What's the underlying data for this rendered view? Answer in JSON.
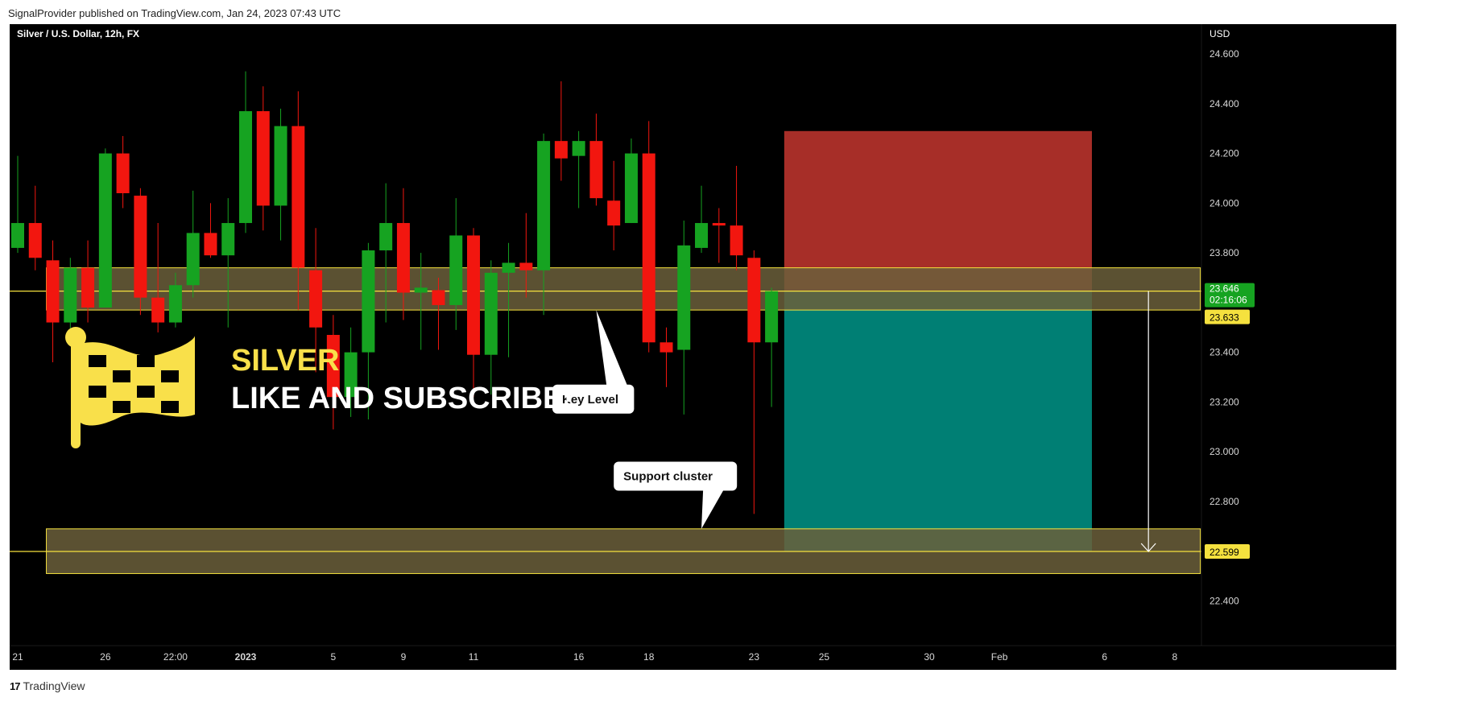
{
  "header": {
    "published_text": "SignalProvider published on TradingView.com, Jan 24, 2023 07:43 UTC"
  },
  "footer": {
    "brand_icon": "tradingview-logo-icon",
    "brand_label": "TradingView"
  },
  "promo": {
    "flag_icon": "checkered-flag-icon",
    "title": "SILVER",
    "subtitle": "LIKE AND SUBSCRIBE!",
    "title_color": "#f9e04a",
    "subtitle_color": "#ffffff"
  },
  "colors": {
    "background": "#000000",
    "up": "#16a321",
    "down": "#f2160f",
    "zone_fill": "#6b5f3b",
    "zone_stroke": "#f5e13e",
    "stop_box": "#b0302a",
    "target_box": "#00867a",
    "level_line": "#f5e13e",
    "current_price_badge": "#16a321"
  },
  "chart_data": {
    "type": "candlestick",
    "title": "Silver / U.S. Dollar, 12h, FX",
    "currency_label": "USD",
    "y_ticks": [
      "24.600",
      "24.400",
      "24.200",
      "24.000",
      "23.800",
      "23.400",
      "23.200",
      "23.000",
      "22.800",
      "22.400"
    ],
    "y_tick_values": [
      24.6,
      24.4,
      24.2,
      24.0,
      23.8,
      23.4,
      23.2,
      23.0,
      22.8,
      22.4
    ],
    "ylim": [
      22.22,
      24.72
    ],
    "x_ticks": [
      {
        "label": "21",
        "index": 0,
        "bold": false
      },
      {
        "label": "26",
        "index": 5,
        "bold": false
      },
      {
        "label": "22:00",
        "index": 9,
        "bold": false
      },
      {
        "label": "2023",
        "index": 13,
        "bold": true
      },
      {
        "label": "5",
        "index": 18,
        "bold": false
      },
      {
        "label": "9",
        "index": 22,
        "bold": false
      },
      {
        "label": "11",
        "index": 26,
        "bold": false
      },
      {
        "label": "16",
        "index": 32,
        "bold": false
      },
      {
        "label": "18",
        "index": 36,
        "bold": false
      },
      {
        "label": "23",
        "index": 42,
        "bold": false
      },
      {
        "label": "25",
        "index": 46,
        "bold": false
      },
      {
        "label": "30",
        "index": 52,
        "bold": false
      },
      {
        "label": "Feb",
        "index": 56,
        "bold": false
      },
      {
        "label": "6",
        "index": 62,
        "bold": false
      },
      {
        "label": "8",
        "index": 66,
        "bold": false
      }
    ],
    "candles": [
      {
        "o": 23.82,
        "h": 24.19,
        "l": 23.8,
        "c": 23.92
      },
      {
        "o": 23.92,
        "h": 24.07,
        "l": 23.73,
        "c": 23.78
      },
      {
        "o": 23.77,
        "h": 23.85,
        "l": 23.36,
        "c": 23.52
      },
      {
        "o": 23.52,
        "h": 23.78,
        "l": 23.47,
        "c": 23.74
      },
      {
        "o": 23.74,
        "h": 23.85,
        "l": 23.52,
        "c": 23.58
      },
      {
        "o": 23.58,
        "h": 24.22,
        "l": 23.58,
        "c": 24.2
      },
      {
        "o": 24.2,
        "h": 24.27,
        "l": 23.98,
        "c": 24.04
      },
      {
        "o": 24.03,
        "h": 24.06,
        "l": 23.55,
        "c": 23.62
      },
      {
        "o": 23.62,
        "h": 23.92,
        "l": 23.48,
        "c": 23.52
      },
      {
        "o": 23.52,
        "h": 23.72,
        "l": 23.5,
        "c": 23.67
      },
      {
        "o": 23.67,
        "h": 24.05,
        "l": 23.62,
        "c": 23.88
      },
      {
        "o": 23.88,
        "h": 24.0,
        "l": 23.78,
        "c": 23.79
      },
      {
        "o": 23.79,
        "h": 24.02,
        "l": 23.5,
        "c": 23.92
      },
      {
        "o": 23.92,
        "h": 24.53,
        "l": 23.88,
        "c": 24.37
      },
      {
        "o": 24.37,
        "h": 24.47,
        "l": 23.89,
        "c": 23.99
      },
      {
        "o": 23.99,
        "h": 24.38,
        "l": 23.85,
        "c": 24.31
      },
      {
        "o": 24.31,
        "h": 24.45,
        "l": 23.57,
        "c": 23.74
      },
      {
        "o": 23.73,
        "h": 23.9,
        "l": 23.32,
        "c": 23.5
      },
      {
        "o": 23.47,
        "h": 23.55,
        "l": 23.09,
        "c": 23.22
      },
      {
        "o": 23.22,
        "h": 23.5,
        "l": 23.14,
        "c": 23.4
      },
      {
        "o": 23.4,
        "h": 23.84,
        "l": 23.13,
        "c": 23.81
      },
      {
        "o": 23.81,
        "h": 24.08,
        "l": 23.52,
        "c": 23.92
      },
      {
        "o": 23.92,
        "h": 24.06,
        "l": 23.53,
        "c": 23.64
      },
      {
        "o": 23.64,
        "h": 23.8,
        "l": 23.41,
        "c": 23.66
      },
      {
        "o": 23.65,
        "h": 23.7,
        "l": 23.41,
        "c": 23.59
      },
      {
        "o": 23.59,
        "h": 24.02,
        "l": 23.49,
        "c": 23.87
      },
      {
        "o": 23.87,
        "h": 23.9,
        "l": 23.22,
        "c": 23.39
      },
      {
        "o": 23.39,
        "h": 23.77,
        "l": 23.23,
        "c": 23.72
      },
      {
        "o": 23.72,
        "h": 23.84,
        "l": 23.38,
        "c": 23.76
      },
      {
        "o": 23.76,
        "h": 23.96,
        "l": 23.62,
        "c": 23.73
      },
      {
        "o": 23.73,
        "h": 24.28,
        "l": 23.55,
        "c": 24.25
      },
      {
        "o": 24.25,
        "h": 24.49,
        "l": 24.09,
        "c": 24.18
      },
      {
        "o": 24.19,
        "h": 24.29,
        "l": 23.98,
        "c": 24.25
      },
      {
        "o": 24.25,
        "h": 24.36,
        "l": 23.99,
        "c": 24.02
      },
      {
        "o": 24.01,
        "h": 24.17,
        "l": 23.81,
        "c": 23.91
      },
      {
        "o": 23.92,
        "h": 24.26,
        "l": 23.92,
        "c": 24.2
      },
      {
        "o": 24.2,
        "h": 24.33,
        "l": 23.4,
        "c": 23.44
      },
      {
        "o": 23.44,
        "h": 23.5,
        "l": 23.26,
        "c": 23.4
      },
      {
        "o": 23.41,
        "h": 23.93,
        "l": 23.15,
        "c": 23.83
      },
      {
        "o": 23.82,
        "h": 24.07,
        "l": 23.8,
        "c": 23.92
      },
      {
        "o": 23.92,
        "h": 23.98,
        "l": 23.76,
        "c": 23.91
      },
      {
        "o": 23.91,
        "h": 24.15,
        "l": 23.73,
        "c": 23.79
      },
      {
        "o": 23.78,
        "h": 23.81,
        "l": 22.75,
        "c": 23.44
      },
      {
        "o": 23.44,
        "h": 23.66,
        "l": 23.18,
        "c": 23.646
      }
    ],
    "zones": [
      {
        "from": 23.57,
        "to": 23.74,
        "start_index": 2,
        "end_index": 67,
        "name": "key-level-zone"
      },
      {
        "from": 22.51,
        "to": 22.69,
        "start_index": 2,
        "end_index": 67,
        "name": "support-zone"
      }
    ],
    "position": {
      "start_index": 44,
      "end_index": 61,
      "entry": 23.646,
      "stop": 24.29,
      "target": 22.599
    },
    "projection_arrow": {
      "index": 64.5,
      "from": 23.646,
      "to": 22.599
    },
    "horizontal_lines": [
      23.646,
      22.599
    ],
    "price_badges": [
      {
        "value": 23.646,
        "label": "23.646",
        "sub_label": "02:16:06",
        "kind": "current"
      },
      {
        "value": 23.633,
        "label": "23.633",
        "sub_label": "",
        "kind": "level"
      },
      {
        "value": 22.599,
        "label": "22.599",
        "sub_label": "",
        "kind": "level"
      }
    ],
    "annotations": [
      {
        "text": "Key Level",
        "anchor_index": 33,
        "anchor_price": 23.57,
        "box_index": 30.5,
        "box_price": 23.27
      },
      {
        "text": "Support cluster",
        "anchor_index": 39,
        "anchor_price": 22.69,
        "box_index": 34,
        "box_price": 22.96
      }
    ]
  }
}
